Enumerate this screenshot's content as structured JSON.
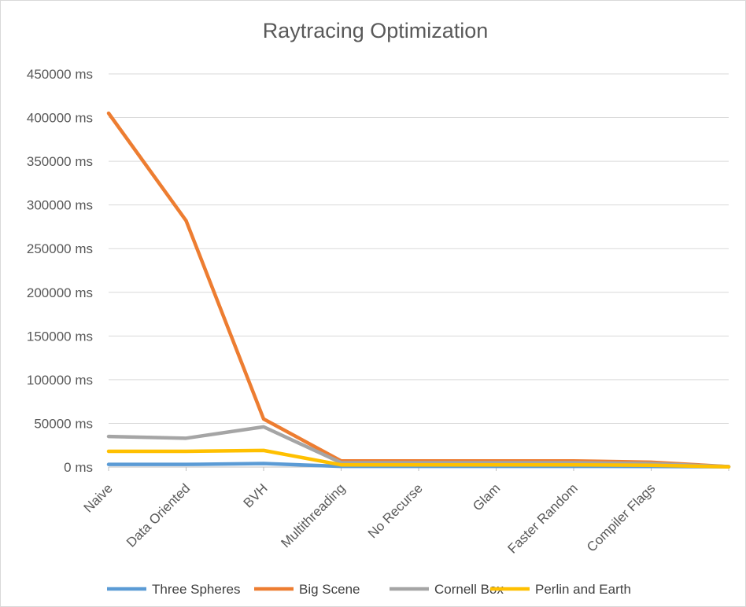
{
  "chart_data": {
    "type": "line",
    "title": "Raytracing Optimization",
    "xlabel": "",
    "ylabel": "",
    "y_unit_suffix": " ms",
    "ylim": [
      0,
      450000
    ],
    "ytick_step": 50000,
    "ytick_labels": [
      "0 ms",
      "50000 ms",
      "100000 ms",
      "150000 ms",
      "200000 ms",
      "250000 ms",
      "300000 ms",
      "350000 ms",
      "400000 ms",
      "450000 ms"
    ],
    "categories": [
      "Naive",
      "Data Oriented",
      "BVH",
      "Multithreading",
      "No Recurse",
      "Glam",
      "Faster Random",
      "Compiler Flags",
      ""
    ],
    "grid": true,
    "legend_position": "bottom",
    "series": [
      {
        "name": "Three Spheres",
        "color": "#5B9BD5",
        "values": [
          3000,
          3000,
          4000,
          800,
          800,
          800,
          800,
          700,
          300
        ]
      },
      {
        "name": "Big Scene",
        "color": "#ED7D31",
        "values": [
          405000,
          282000,
          55000,
          7000,
          7000,
          7000,
          7000,
          5500,
          500
        ]
      },
      {
        "name": "Cornell Box",
        "color": "#A5A5A5",
        "values": [
          35000,
          33000,
          46000,
          5000,
          5000,
          5000,
          5000,
          4000,
          400
        ]
      },
      {
        "name": "Perlin and Earth",
        "color": "#FFC000",
        "values": [
          18000,
          18000,
          19000,
          2500,
          2500,
          2500,
          2500,
          2000,
          200
        ]
      }
    ]
  }
}
